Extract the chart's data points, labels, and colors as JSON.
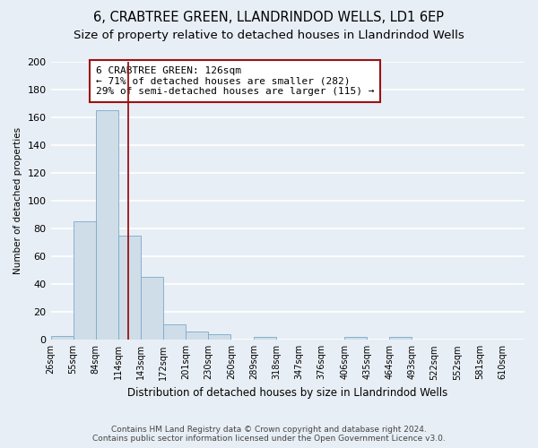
{
  "title": "6, CRABTREE GREEN, LLANDRINDOD WELLS, LD1 6EP",
  "subtitle": "Size of property relative to detached houses in Llandrindod Wells",
  "xlabel": "Distribution of detached houses by size in Llandrindod Wells",
  "ylabel": "Number of detached properties",
  "bar_values": [
    3,
    85,
    165,
    75,
    45,
    11,
    6,
    4,
    0,
    2,
    0,
    0,
    0,
    2,
    0,
    2,
    0,
    0,
    0,
    0,
    0
  ],
  "bin_labels": [
    "26sqm",
    "55sqm",
    "84sqm",
    "114sqm",
    "143sqm",
    "172sqm",
    "201sqm",
    "230sqm",
    "260sqm",
    "289sqm",
    "318sqm",
    "347sqm",
    "376sqm",
    "406sqm",
    "435sqm",
    "464sqm",
    "493sqm",
    "522sqm",
    "552sqm",
    "581sqm",
    "610sqm"
  ],
  "bin_edges": [
    26,
    55,
    84,
    114,
    143,
    172,
    201,
    230,
    260,
    289,
    318,
    347,
    376,
    406,
    435,
    464,
    493,
    522,
    552,
    581,
    610
  ],
  "bar_color": "#cfdde8",
  "bar_edge_color": "#7aaac8",
  "property_line_x": 126,
  "property_line_color": "#9b1111",
  "annotation_box_text": "6 CRABTREE GREEN: 126sqm\n← 71% of detached houses are smaller (282)\n29% of semi-detached houses are larger (115) →",
  "annotation_box_color": "#ffffff",
  "annotation_box_edge_color": "#9b1111",
  "ylim": [
    0,
    200
  ],
  "yticks": [
    0,
    20,
    40,
    60,
    80,
    100,
    120,
    140,
    160,
    180,
    200
  ],
  "bg_color": "#e8eef5",
  "grid_color": "#ffffff",
  "footer_line1": "Contains HM Land Registry data © Crown copyright and database right 2024.",
  "footer_line2": "Contains public sector information licensed under the Open Government Licence v3.0.",
  "title_fontsize": 10.5,
  "subtitle_fontsize": 9.5,
  "ann_fontsize": 8.0,
  "xlabel_fontsize": 8.5,
  "ylabel_fontsize": 7.5,
  "tick_fontsize": 7.0,
  "footer_fontsize": 6.5
}
